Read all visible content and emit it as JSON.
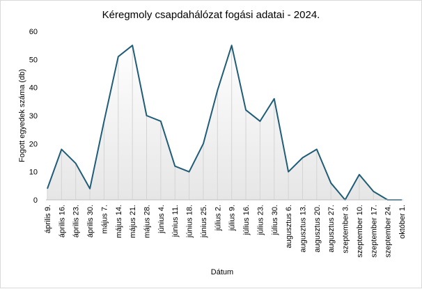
{
  "chart_data": {
    "type": "line",
    "title": "Kéregmoly csapdahálózat fogási adatai - 2024.",
    "xlabel": "Dátum",
    "ylabel": "Fogott egyedek száma (db)",
    "ylim": [
      0,
      60
    ],
    "yticks": [
      0,
      10,
      20,
      30,
      40,
      50,
      60
    ],
    "grid": false,
    "categories": [
      "április 9.",
      "április 16.",
      "április 23.",
      "április 30.",
      "május 7.",
      "május 14.",
      "május 21.",
      "május 28.",
      "június 4.",
      "június 11.",
      "június 18.",
      "június 25.",
      "július 2.",
      "július 9.",
      "július 16.",
      "július 23.",
      "július 30.",
      "augusztus 6.",
      "augusztus 13.",
      "augusztus 20.",
      "augusztus 27.",
      "szeptember 3.",
      "szeptember 10.",
      "szeptember 17.",
      "szeptember 24.",
      "október 1."
    ],
    "series": [
      {
        "values": [
          4,
          18,
          13,
          4,
          28,
          51,
          55,
          30,
          28,
          12,
          10,
          20,
          39,
          55,
          32,
          28,
          36,
          10,
          15,
          18,
          6,
          0,
          9,
          3,
          0,
          0
        ],
        "color": "#1f5c78"
      }
    ],
    "area_fill": "gradient from white (top) to light gray (bottom) under the line",
    "drop_lines": true
  }
}
